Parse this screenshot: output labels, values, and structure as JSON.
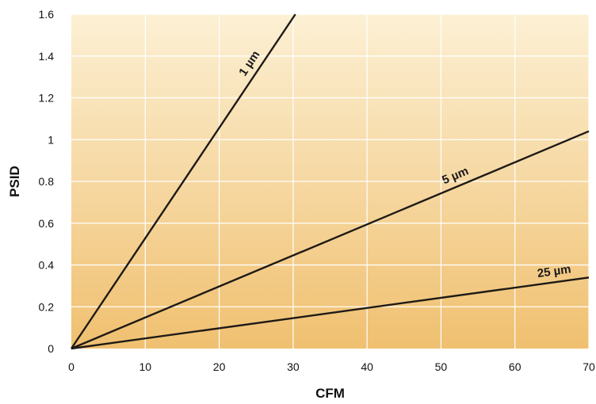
{
  "chart_data": {
    "type": "line",
    "xlabel": "CFM",
    "ylabel": "PSID",
    "xlim": [
      0,
      70
    ],
    "ylim": [
      0,
      1.6
    ],
    "x_ticks": [
      0,
      10,
      20,
      30,
      40,
      50,
      60,
      70
    ],
    "y_ticks": [
      0,
      0.2,
      0.4,
      0.6,
      0.8,
      1,
      1.2,
      1.4,
      1.6
    ],
    "x_tick_labels": [
      "0",
      "10",
      "20",
      "30",
      "40",
      "50",
      "60",
      "70"
    ],
    "y_tick_labels": [
      "0",
      "0.2",
      "0.4",
      "0.6",
      "0.8",
      "1",
      "1.2",
      "1.4",
      "1.6"
    ],
    "grid": true,
    "background_gradient": [
      "#fcf0d4",
      "#f0c070"
    ],
    "line_color": "#1e1a16",
    "series": [
      {
        "label": "1 µm",
        "x": [
          0,
          30.3
        ],
        "y": [
          0,
          1.6
        ]
      },
      {
        "label": "5 µm",
        "x": [
          0,
          70
        ],
        "y": [
          0,
          1.04
        ]
      },
      {
        "label": "25 µm",
        "x": [
          0,
          70
        ],
        "y": [
          0,
          0.34
        ]
      }
    ],
    "annotations": [
      {
        "text": "1 µm",
        "series": 0,
        "x": 25.3
      },
      {
        "text": "5 µm",
        "series": 1,
        "x": 52.5
      },
      {
        "text": "25 µm",
        "series": 2,
        "x": 65.5
      }
    ]
  }
}
